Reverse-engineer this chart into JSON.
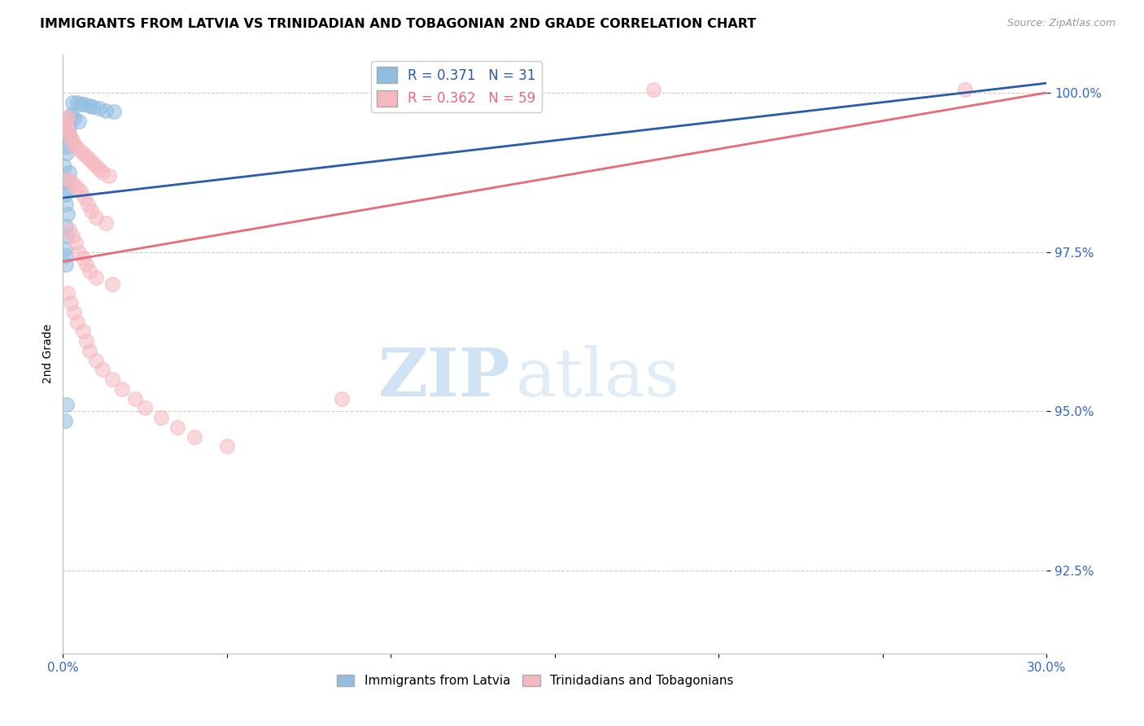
{
  "title": "IMMIGRANTS FROM LATVIA VS TRINIDADIAN AND TOBAGONIAN 2ND GRADE CORRELATION CHART",
  "source": "Source: ZipAtlas.com",
  "ylabel": "2nd Grade",
  "ytick_labels": [
    "92.5%",
    "95.0%",
    "97.5%",
    "100.0%"
  ],
  "ytick_values": [
    92.5,
    95.0,
    97.5,
    100.0
  ],
  "xmin": 0.0,
  "xmax": 30.0,
  "ymin": 91.2,
  "ymax": 100.6,
  "legend_blue_label": "R = 0.371   N = 31",
  "legend_pink_label": "R = 0.362   N = 59",
  "legend_label_blue": "Immigrants from Latvia",
  "legend_label_pink": "Trinidadians and Tobagonians",
  "blue_color": "#90bde0",
  "pink_color": "#f5b8c0",
  "blue_line_color": "#2b5ca8",
  "pink_line_color": "#e8697a",
  "blue_scatter": [
    [
      0.3,
      99.85
    ],
    [
      0.45,
      99.85
    ],
    [
      0.55,
      99.82
    ],
    [
      0.65,
      99.82
    ],
    [
      0.8,
      99.8
    ],
    [
      0.9,
      99.78
    ],
    [
      1.1,
      99.75
    ],
    [
      1.3,
      99.72
    ],
    [
      1.55,
      99.7
    ],
    [
      0.25,
      99.65
    ],
    [
      0.35,
      99.6
    ],
    [
      0.5,
      99.55
    ],
    [
      0.2,
      99.45
    ],
    [
      0.1,
      99.4
    ],
    [
      0.15,
      99.3
    ],
    [
      0.08,
      99.15
    ],
    [
      0.12,
      99.05
    ],
    [
      0.05,
      98.85
    ],
    [
      0.18,
      98.75
    ],
    [
      0.08,
      98.6
    ],
    [
      0.12,
      98.5
    ],
    [
      0.06,
      98.4
    ],
    [
      0.1,
      98.25
    ],
    [
      0.15,
      98.1
    ],
    [
      0.08,
      97.9
    ],
    [
      0.12,
      97.75
    ],
    [
      0.06,
      97.55
    ],
    [
      0.1,
      97.45
    ],
    [
      0.08,
      97.3
    ],
    [
      0.12,
      95.1
    ],
    [
      0.06,
      94.85
    ]
  ],
  "pink_scatter": [
    [
      0.05,
      99.55
    ],
    [
      0.08,
      99.5
    ],
    [
      0.12,
      99.45
    ],
    [
      0.15,
      99.42
    ],
    [
      0.2,
      99.35
    ],
    [
      0.25,
      99.3
    ],
    [
      0.3,
      99.25
    ],
    [
      0.35,
      99.2
    ],
    [
      0.4,
      99.15
    ],
    [
      0.5,
      99.1
    ],
    [
      0.6,
      99.05
    ],
    [
      0.7,
      99.0
    ],
    [
      0.8,
      98.95
    ],
    [
      0.9,
      98.9
    ],
    [
      1.0,
      98.85
    ],
    [
      1.1,
      98.8
    ],
    [
      1.2,
      98.75
    ],
    [
      1.4,
      98.7
    ],
    [
      0.15,
      98.65
    ],
    [
      0.25,
      98.6
    ],
    [
      0.35,
      98.55
    ],
    [
      0.45,
      98.5
    ],
    [
      0.55,
      98.45
    ],
    [
      0.65,
      98.35
    ],
    [
      0.75,
      98.25
    ],
    [
      0.85,
      98.15
    ],
    [
      1.0,
      98.05
    ],
    [
      1.3,
      97.95
    ],
    [
      0.2,
      97.85
    ],
    [
      0.3,
      97.75
    ],
    [
      0.4,
      97.65
    ],
    [
      0.5,
      97.5
    ],
    [
      0.6,
      97.4
    ],
    [
      0.7,
      97.3
    ],
    [
      0.8,
      97.2
    ],
    [
      1.0,
      97.1
    ],
    [
      1.5,
      97.0
    ],
    [
      0.15,
      96.85
    ],
    [
      0.25,
      96.7
    ],
    [
      0.35,
      96.55
    ],
    [
      0.45,
      96.4
    ],
    [
      0.6,
      96.25
    ],
    [
      0.7,
      96.1
    ],
    [
      0.8,
      95.95
    ],
    [
      1.0,
      95.8
    ],
    [
      1.2,
      95.65
    ],
    [
      1.5,
      95.5
    ],
    [
      1.8,
      95.35
    ],
    [
      2.2,
      95.2
    ],
    [
      2.5,
      95.05
    ],
    [
      3.0,
      94.9
    ],
    [
      3.5,
      94.75
    ],
    [
      4.0,
      94.6
    ],
    [
      5.0,
      94.45
    ],
    [
      0.15,
      99.62
    ],
    [
      0.1,
      99.58
    ],
    [
      8.5,
      95.2
    ],
    [
      18.0,
      100.05
    ],
    [
      27.5,
      100.05
    ]
  ],
  "blue_trendline_x": [
    0.0,
    30.0
  ],
  "blue_trendline_y": [
    98.35,
    100.15
  ],
  "pink_trendline_x": [
    0.0,
    30.0
  ],
  "pink_trendline_y": [
    97.35,
    100.0
  ],
  "watermark_zip": "ZIP",
  "watermark_atlas": "atlas",
  "title_fontsize": 11.5,
  "axis_tick_color": "#3366cc",
  "grid_color": "#cccccc",
  "right_yaxis_color": "#3366cc"
}
